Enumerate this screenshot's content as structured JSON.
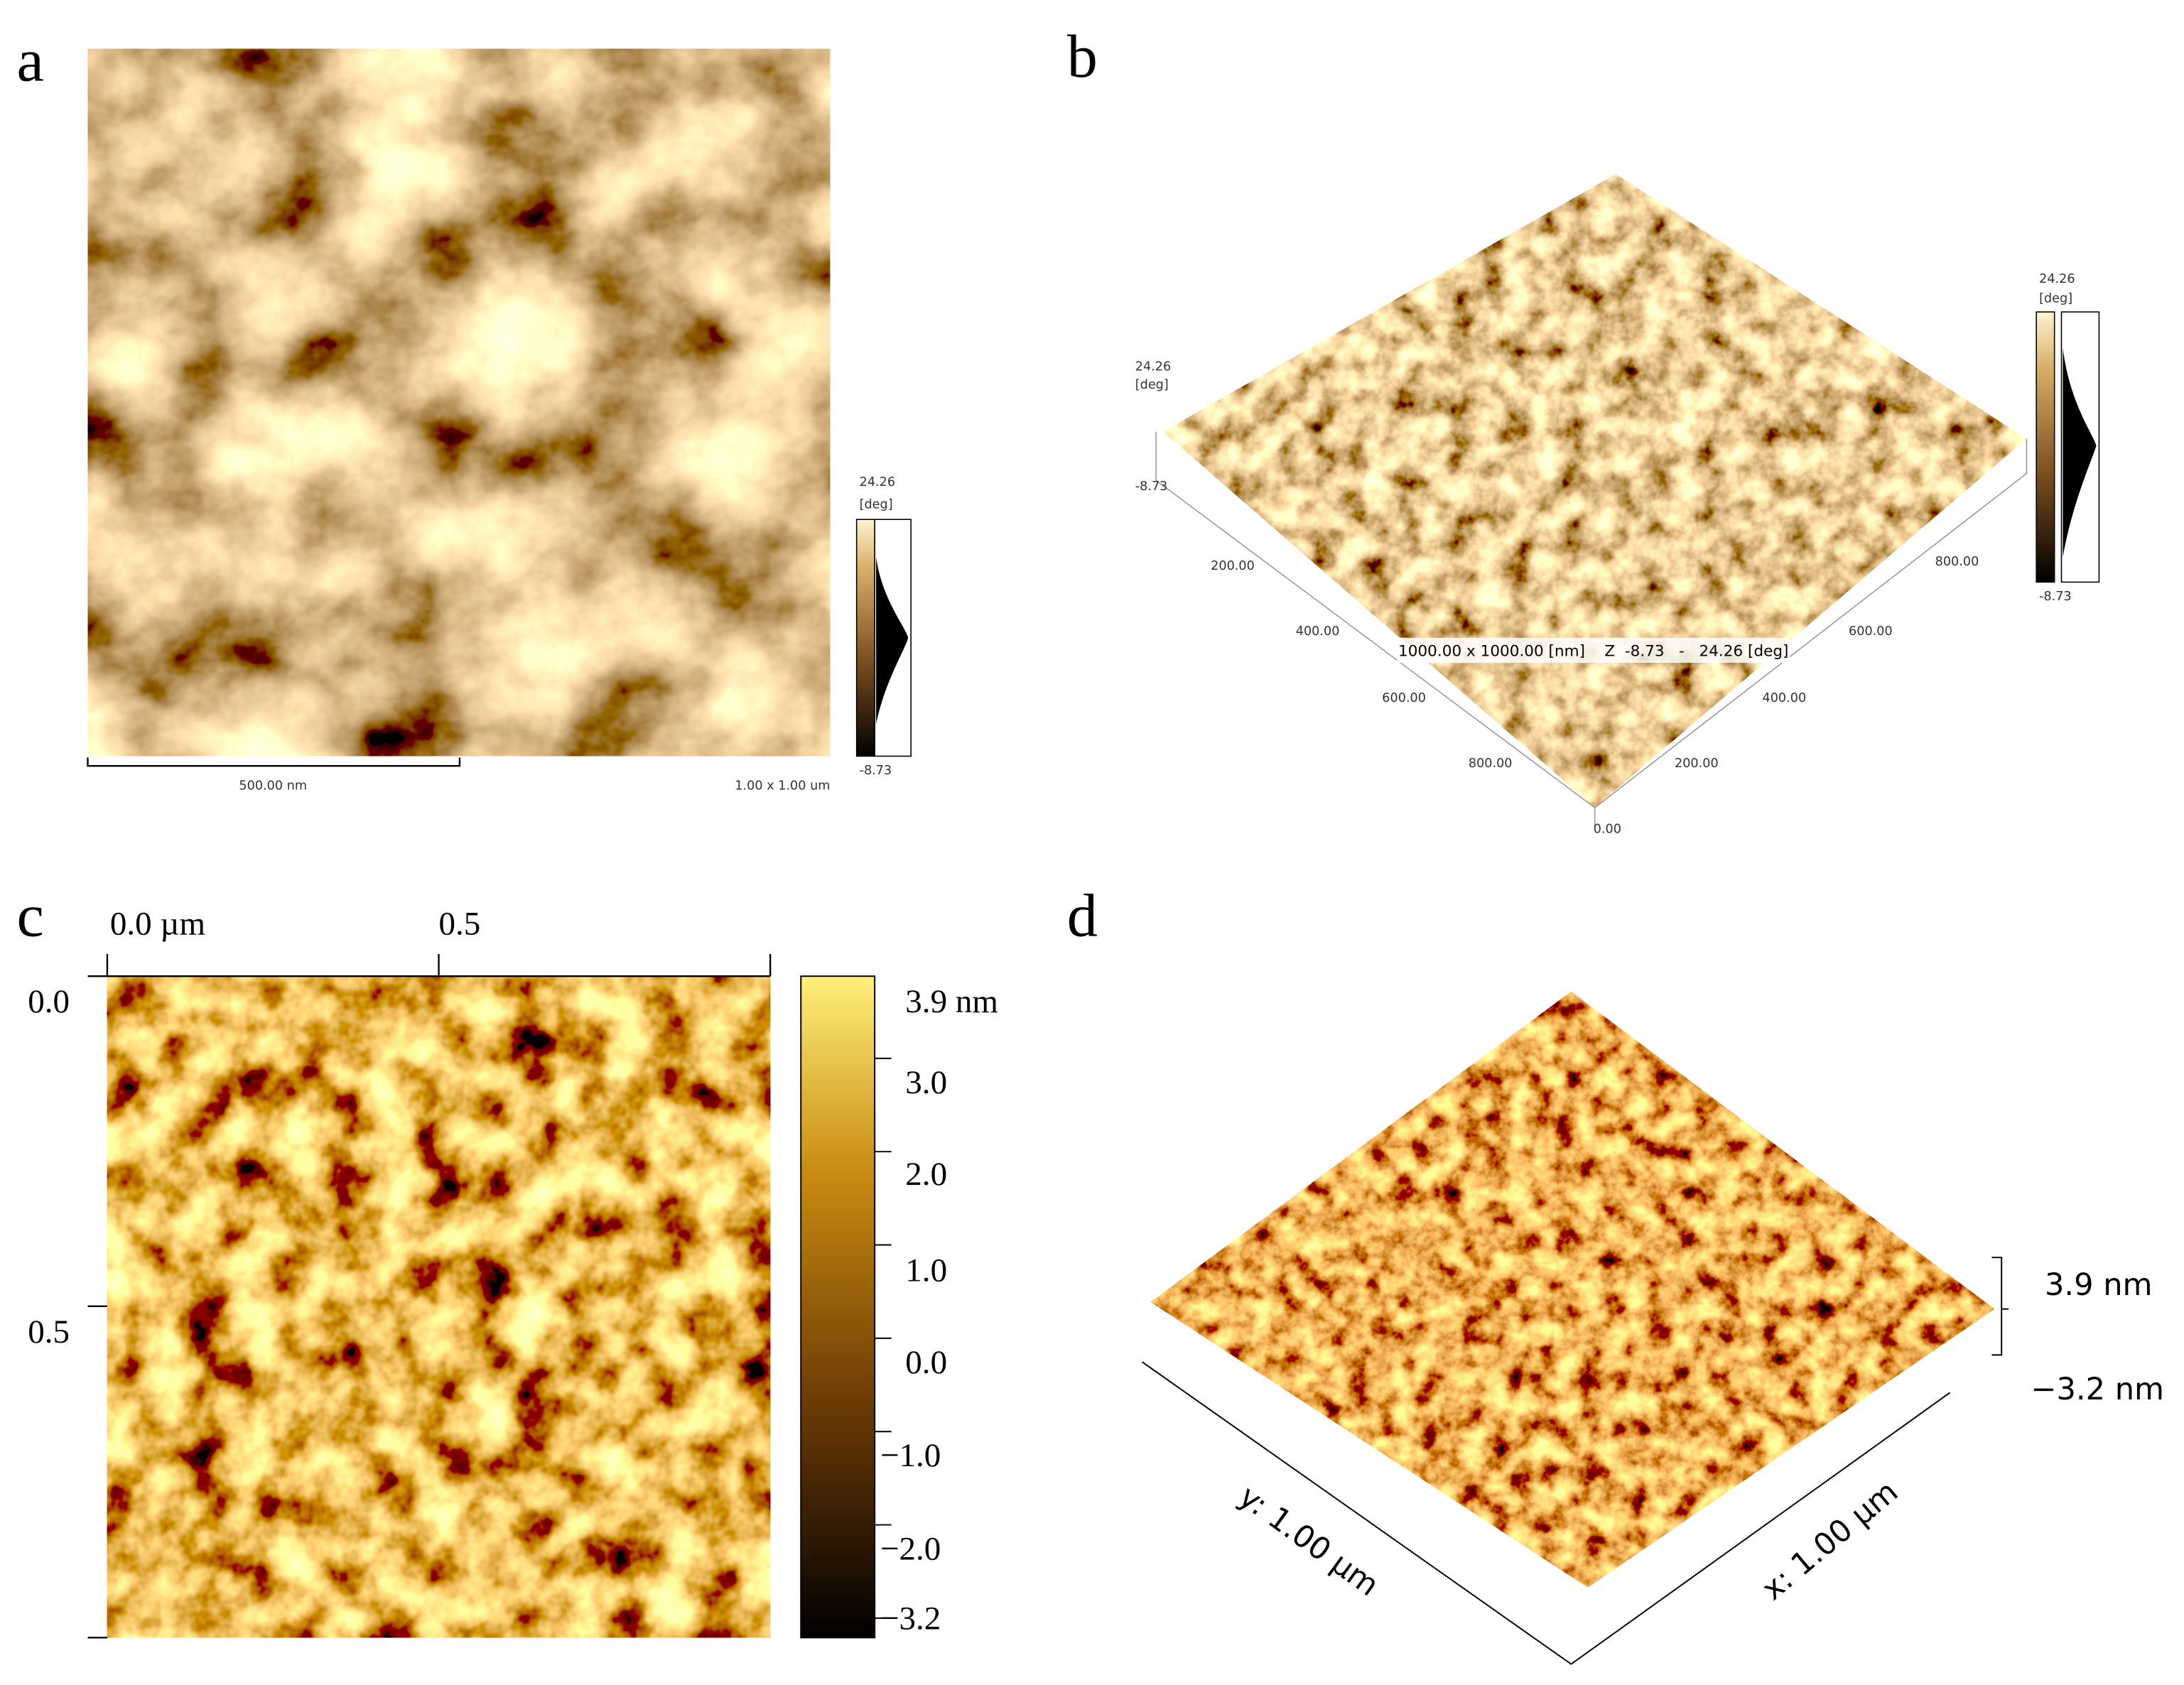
{
  "panels": {
    "a": {
      "label": "a",
      "colorbar": {
        "max": "24.26",
        "unit": "[deg]",
        "min": "-8.73"
      },
      "scale_bar": "500.00 nm",
      "scan_size": "1.00 x 1.00 um"
    },
    "b": {
      "label": "b",
      "z_axis": {
        "max": "24.26",
        "unit": "[deg]",
        "min": "-8.73"
      },
      "colorbar": {
        "max": "24.26",
        "unit": "[deg]",
        "min": "-8.73"
      },
      "left_axis": [
        "200.00",
        "400.00",
        "600.00",
        "800.00"
      ],
      "right_axis": [
        "800.00",
        "600.00",
        "400.00",
        "200.00"
      ],
      "origin": "0.00",
      "banner": "1000.00 x 1000.00 [nm]    Z  -8.73   -   24.26 [deg]"
    },
    "c": {
      "label": "c",
      "top_axis": [
        "0.0 µm",
        "0.5"
      ],
      "left_axis": [
        "0.0",
        "0.5"
      ],
      "colorbar": [
        "3.9 nm",
        "3.0",
        "2.0",
        "1.0",
        "0.0",
        "−1.0",
        "−2.0",
        "−3.2"
      ]
    },
    "d": {
      "label": "d",
      "z_max": "3.9 nm",
      "z_min": "−3.2 nm",
      "y_axis": "y: 1.00 µm",
      "x_axis": "x: 1.00 µm"
    }
  }
}
